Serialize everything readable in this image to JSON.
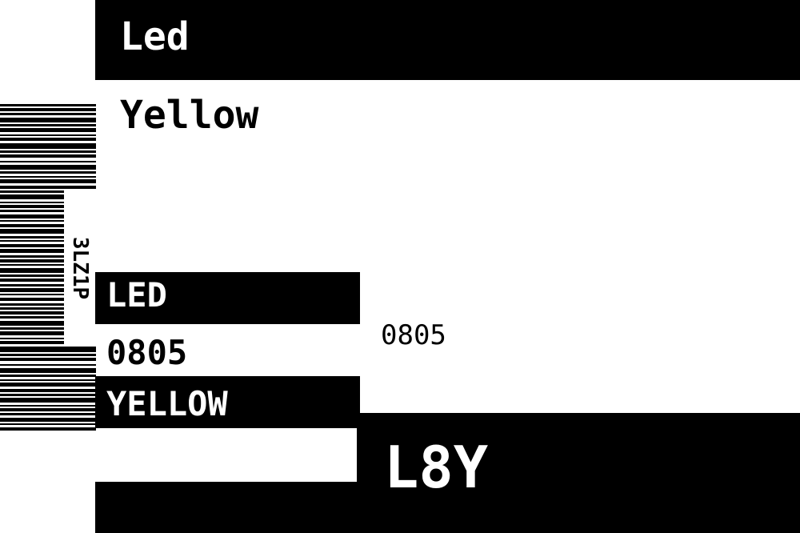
{
  "label": {
    "type_title": "Led",
    "color_name": "Yellow",
    "barcode_text": "3LZ1P",
    "type_caps": "LED",
    "package_left": "0805",
    "color_caps": "YELLOW",
    "package_right": "0805",
    "short_code": "L8Y"
  },
  "colors": {
    "foreground": "#000000",
    "background": "#ffffff"
  }
}
